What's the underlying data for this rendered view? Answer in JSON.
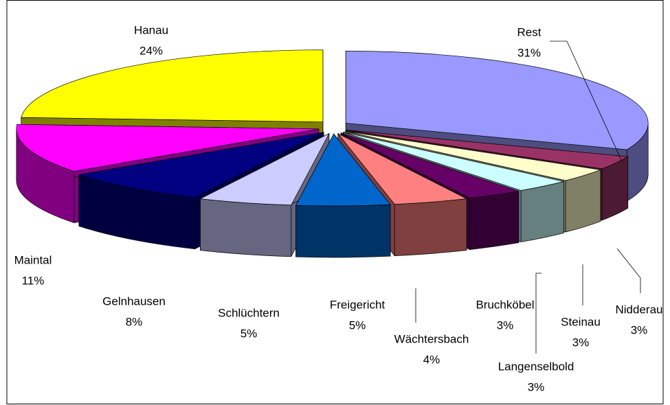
{
  "chart_data": {
    "type": "pie3d",
    "categories": [
      "Rest",
      "Nidderau",
      "Steinau",
      "Langenselbold",
      "Bruchköbel",
      "Wächtersbach",
      "Freigericht",
      "Schlüchtern",
      "Gelnhausen",
      "Maintal",
      "Hanau"
    ],
    "values": [
      31,
      3,
      3,
      3,
      3,
      4,
      5,
      5,
      8,
      11,
      24
    ],
    "value_labels": [
      "31%",
      "3%",
      "3%",
      "3%",
      "3%",
      "4%",
      "5%",
      "5%",
      "8%",
      "11%",
      "24%"
    ],
    "colors": [
      "#9999ff",
      "#993366",
      "#ffffcc",
      "#ccffff",
      "#660066",
      "#ff8080",
      "#0066cc",
      "#ccccff",
      "#000080",
      "#ff00ff",
      "#ffff00"
    ]
  }
}
